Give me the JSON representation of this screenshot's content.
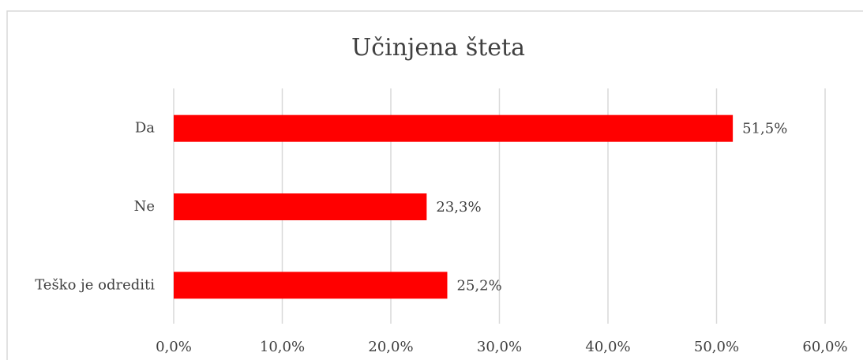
{
  "chart_data": {
    "type": "bar",
    "orientation": "horizontal",
    "title": "Učinjena šteta",
    "categories": [
      "Da",
      "Ne",
      "Teško je odrediti"
    ],
    "values": [
      51.5,
      23.3,
      25.2
    ],
    "value_labels": [
      "51,5%",
      "23,3%",
      "25,2%"
    ],
    "color": "#ff0000",
    "xlim": [
      0,
      60
    ],
    "xticks": [
      {
        "value": 0,
        "label": "0,0%"
      },
      {
        "value": 10,
        "label": "10,0%"
      },
      {
        "value": 20,
        "label": "20,0%"
      },
      {
        "value": 30,
        "label": "30,0%"
      },
      {
        "value": 40,
        "label": "40,0%"
      },
      {
        "value": 50,
        "label": "50,0%"
      },
      {
        "value": 60,
        "label": "60,0%"
      }
    ],
    "grid": true
  }
}
